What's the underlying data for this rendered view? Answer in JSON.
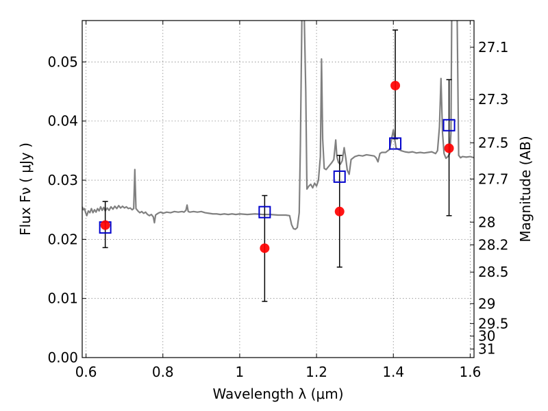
{
  "chart_data": {
    "type": "scatter",
    "xlabel": "Wavelength  λ (μm)",
    "ylabel_left": "Flux  Fν  ( μJy )",
    "ylabel_right": "Magnitude (AB)",
    "xlim": [
      0.59,
      1.61
    ],
    "ylim": [
      0.0,
      0.057
    ],
    "grid": true,
    "x_ticks": [
      {
        "v": 0.6,
        "label": "0.6"
      },
      {
        "v": 0.8,
        "label": "0.8"
      },
      {
        "v": 1.0,
        "label": "1"
      },
      {
        "v": 1.2,
        "label": "1.2"
      },
      {
        "v": 1.4,
        "label": "1.4"
      },
      {
        "v": 1.6,
        "label": "1.6"
      }
    ],
    "y_ticks": [
      {
        "v": 0.0,
        "label": "0.00"
      },
      {
        "v": 0.01,
        "label": "0.01"
      },
      {
        "v": 0.02,
        "label": "0.02"
      },
      {
        "v": 0.03,
        "label": "0.03"
      },
      {
        "v": 0.04,
        "label": "0.04"
      },
      {
        "v": 0.05,
        "label": "0.05"
      }
    ],
    "mag_ticks": [
      {
        "mag": 27.1,
        "label": "27.1"
      },
      {
        "mag": 27.3,
        "label": "27.3"
      },
      {
        "mag": 27.5,
        "label": "27.5"
      },
      {
        "mag": 27.7,
        "label": "27.7"
      },
      {
        "mag": 28.0,
        "label": "28"
      },
      {
        "mag": 28.2,
        "label": "28.2"
      },
      {
        "mag": 28.5,
        "label": "28.5"
      },
      {
        "mag": 29.0,
        "label": "29"
      },
      {
        "mag": 29.5,
        "label": "29.5"
      },
      {
        "mag": 30.0,
        "label": "30"
      },
      {
        "mag": 31.0,
        "label": "31"
      }
    ],
    "spectrum": {
      "color": "#808080",
      "points": [
        [
          0.59,
          0.0255
        ],
        [
          0.593,
          0.025
        ],
        [
          0.596,
          0.0252
        ],
        [
          0.599,
          0.0245
        ],
        [
          0.602,
          0.024
        ],
        [
          0.606,
          0.0248
        ],
        [
          0.61,
          0.0245
        ],
        [
          0.614,
          0.0252
        ],
        [
          0.618,
          0.0245
        ],
        [
          0.622,
          0.025
        ],
        [
          0.626,
          0.0246
        ],
        [
          0.63,
          0.0252
        ],
        [
          0.634,
          0.0248
        ],
        [
          0.638,
          0.0255
        ],
        [
          0.642,
          0.0249
        ],
        [
          0.646,
          0.0254
        ],
        [
          0.65,
          0.0248
        ],
        [
          0.655,
          0.0253
        ],
        [
          0.66,
          0.0249
        ],
        [
          0.665,
          0.0255
        ],
        [
          0.67,
          0.0251
        ],
        [
          0.675,
          0.0256
        ],
        [
          0.68,
          0.0252
        ],
        [
          0.685,
          0.0257
        ],
        [
          0.69,
          0.0253
        ],
        [
          0.695,
          0.0256
        ],
        [
          0.7,
          0.0253
        ],
        [
          0.705,
          0.0255
        ],
        [
          0.71,
          0.0252
        ],
        [
          0.715,
          0.0253
        ],
        [
          0.72,
          0.025
        ],
        [
          0.724,
          0.0252
        ],
        [
          0.727,
          0.0318
        ],
        [
          0.73,
          0.0252
        ],
        [
          0.735,
          0.0248
        ],
        [
          0.74,
          0.0245
        ],
        [
          0.745,
          0.0247
        ],
        [
          0.75,
          0.0244
        ],
        [
          0.755,
          0.0246
        ],
        [
          0.76,
          0.0242
        ],
        [
          0.765,
          0.024
        ],
        [
          0.77,
          0.0242
        ],
        [
          0.775,
          0.0238
        ],
        [
          0.778,
          0.0228
        ],
        [
          0.781,
          0.0241
        ],
        [
          0.785,
          0.0243
        ],
        [
          0.79,
          0.0245
        ],
        [
          0.795,
          0.0246
        ],
        [
          0.8,
          0.0244
        ],
        [
          0.81,
          0.0246
        ],
        [
          0.82,
          0.0245
        ],
        [
          0.83,
          0.0247
        ],
        [
          0.84,
          0.0246
        ],
        [
          0.85,
          0.0247
        ],
        [
          0.855,
          0.0246
        ],
        [
          0.86,
          0.0249
        ],
        [
          0.863,
          0.0258
        ],
        [
          0.866,
          0.0247
        ],
        [
          0.87,
          0.0246
        ],
        [
          0.88,
          0.0247
        ],
        [
          0.89,
          0.0246
        ],
        [
          0.9,
          0.0247
        ],
        [
          0.91,
          0.0245
        ],
        [
          0.92,
          0.0244
        ],
        [
          0.93,
          0.0243
        ],
        [
          0.94,
          0.0243
        ],
        [
          0.95,
          0.0242
        ],
        [
          0.96,
          0.0243
        ],
        [
          0.97,
          0.0242
        ],
        [
          0.98,
          0.0243
        ],
        [
          0.99,
          0.0242
        ],
        [
          1.0,
          0.0243
        ],
        [
          1.02,
          0.0242
        ],
        [
          1.04,
          0.0243
        ],
        [
          1.06,
          0.0242
        ],
        [
          1.08,
          0.0242
        ],
        [
          1.1,
          0.0241
        ],
        [
          1.12,
          0.0241
        ],
        [
          1.13,
          0.024
        ],
        [
          1.135,
          0.0225
        ],
        [
          1.14,
          0.0218
        ],
        [
          1.145,
          0.0217
        ],
        [
          1.15,
          0.022
        ],
        [
          1.155,
          0.0245
        ],
        [
          1.158,
          0.036
        ],
        [
          1.162,
          0.058
        ],
        [
          1.168,
          0.058
        ],
        [
          1.172,
          0.045
        ],
        [
          1.175,
          0.0285
        ],
        [
          1.18,
          0.029
        ],
        [
          1.185,
          0.0293
        ],
        [
          1.19,
          0.0287
        ],
        [
          1.195,
          0.0295
        ],
        [
          1.2,
          0.029
        ],
        [
          1.205,
          0.03
        ],
        [
          1.21,
          0.034
        ],
        [
          1.213,
          0.0505
        ],
        [
          1.216,
          0.037
        ],
        [
          1.22,
          0.032
        ],
        [
          1.225,
          0.0318
        ],
        [
          1.23,
          0.0322
        ],
        [
          1.24,
          0.033
        ],
        [
          1.245,
          0.0335
        ],
        [
          1.25,
          0.0368
        ],
        [
          1.253,
          0.034
        ],
        [
          1.257,
          0.033
        ],
        [
          1.262,
          0.0327
        ],
        [
          1.267,
          0.0333
        ],
        [
          1.272,
          0.0355
        ],
        [
          1.276,
          0.0338
        ],
        [
          1.28,
          0.0317
        ],
        [
          1.285,
          0.031
        ],
        [
          1.29,
          0.0335
        ],
        [
          1.3,
          0.034
        ],
        [
          1.31,
          0.0342
        ],
        [
          1.32,
          0.0341
        ],
        [
          1.33,
          0.0343
        ],
        [
          1.34,
          0.0342
        ],
        [
          1.35,
          0.0341
        ],
        [
          1.355,
          0.0338
        ],
        [
          1.36,
          0.0331
        ],
        [
          1.365,
          0.0345
        ],
        [
          1.37,
          0.0347
        ],
        [
          1.38,
          0.0347
        ],
        [
          1.39,
          0.0352
        ],
        [
          1.4,
          0.0385
        ],
        [
          1.403,
          0.0372
        ],
        [
          1.407,
          0.0355
        ],
        [
          1.41,
          0.0353
        ],
        [
          1.42,
          0.035
        ],
        [
          1.43,
          0.0348
        ],
        [
          1.44,
          0.0347
        ],
        [
          1.45,
          0.0348
        ],
        [
          1.46,
          0.0346
        ],
        [
          1.47,
          0.0347
        ],
        [
          1.48,
          0.0346
        ],
        [
          1.49,
          0.0347
        ],
        [
          1.5,
          0.0348
        ],
        [
          1.51,
          0.0345
        ],
        [
          1.515,
          0.035
        ],
        [
          1.52,
          0.039
        ],
        [
          1.524,
          0.0472
        ],
        [
          1.528,
          0.038
        ],
        [
          1.532,
          0.0345
        ],
        [
          1.537,
          0.0337
        ],
        [
          1.542,
          0.034
        ],
        [
          1.547,
          0.0345
        ],
        [
          1.55,
          0.038
        ],
        [
          1.552,
          0.058
        ],
        [
          1.556,
          0.058
        ],
        [
          1.56,
          0.058
        ],
        [
          1.563,
          0.058
        ],
        [
          1.566,
          0.058
        ],
        [
          1.57,
          0.0342
        ],
        [
          1.575,
          0.0338
        ],
        [
          1.58,
          0.034
        ],
        [
          1.59,
          0.0339
        ],
        [
          1.6,
          0.034
        ],
        [
          1.61,
          0.0338
        ]
      ]
    },
    "series": [
      {
        "marker": "circle",
        "color": "#ff0000",
        "points": [
          {
            "x": 0.65,
            "y": 0.0224,
            "yerr_low": 0.0186,
            "yerr_high": 0.0264
          },
          {
            "x": 1.065,
            "y": 0.0185,
            "yerr_low": 0.0095,
            "yerr_high": 0.0274
          },
          {
            "x": 1.26,
            "y": 0.0247,
            "yerr_low": 0.0153,
            "yerr_high": 0.0342
          },
          {
            "x": 1.405,
            "y": 0.046,
            "yerr_low": 0.037,
            "yerr_high": 0.0554
          },
          {
            "x": 1.545,
            "y": 0.0354,
            "yerr_low": 0.024,
            "yerr_high": 0.047
          }
        ]
      },
      {
        "marker": "open-square",
        "color": "#0000cc",
        "points": [
          {
            "x": 0.65,
            "y": 0.022
          },
          {
            "x": 1.065,
            "y": 0.0246
          },
          {
            "x": 1.26,
            "y": 0.0306
          },
          {
            "x": 1.405,
            "y": 0.0362
          },
          {
            "x": 1.545,
            "y": 0.0393
          }
        ]
      }
    ]
  }
}
